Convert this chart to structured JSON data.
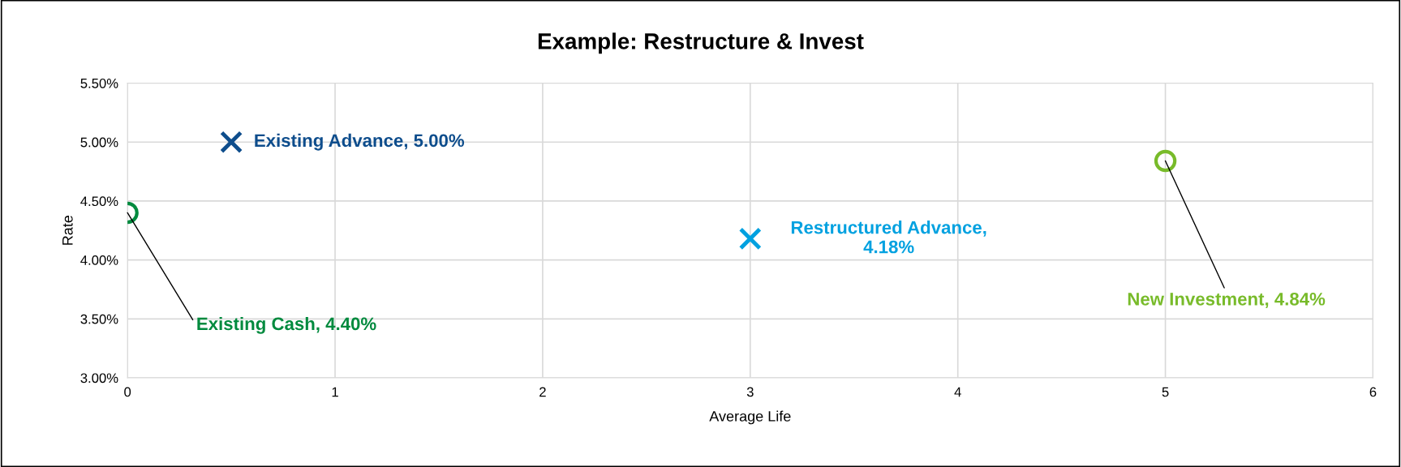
{
  "chart_data": {
    "type": "scatter",
    "title": "Example: Restructure & Invest",
    "xlabel": "Average Life",
    "ylabel": "Rate",
    "xlim": [
      0,
      6
    ],
    "xticks": [
      0,
      1,
      2,
      3,
      4,
      5,
      6
    ],
    "ylim": [
      3.0,
      5.5
    ],
    "yticks": [
      {
        "value": 3.0,
        "label": "3.00%"
      },
      {
        "value": 3.5,
        "label": "3.50%"
      },
      {
        "value": 4.0,
        "label": "4.00%"
      },
      {
        "value": 4.5,
        "label": "4.50%"
      },
      {
        "value": 5.0,
        "label": "5.00%"
      },
      {
        "value": 5.5,
        "label": "5.50%"
      }
    ],
    "grid": true,
    "legend": false,
    "series": [
      {
        "color": "#0e4d8c",
        "marker": "cross",
        "x": [
          0.5
        ],
        "values": [
          5.0
        ]
      },
      {
        "color": "#00a1e0",
        "marker": "cross",
        "x": [
          3
        ],
        "values": [
          4.18
        ]
      },
      {
        "color": "#008a3e",
        "marker": "circle",
        "x": [
          0
        ],
        "values": [
          4.4
        ]
      },
      {
        "color": "#78bb2a",
        "marker": "circle",
        "x": [
          5
        ],
        "values": [
          4.84
        ]
      }
    ],
    "annotations": [
      {
        "text": "Existing Advance, 5.00%",
        "x": 0.5,
        "y": 5.0
      },
      {
        "text": "Restructured Advance,\n4.18%",
        "x": 3,
        "y": 4.18
      },
      {
        "text": "Existing Cash, 4.40%",
        "x": 0,
        "y": 4.4
      },
      {
        "text": "New Investment, 4.84%",
        "x": 5,
        "y": 4.84
      }
    ]
  }
}
